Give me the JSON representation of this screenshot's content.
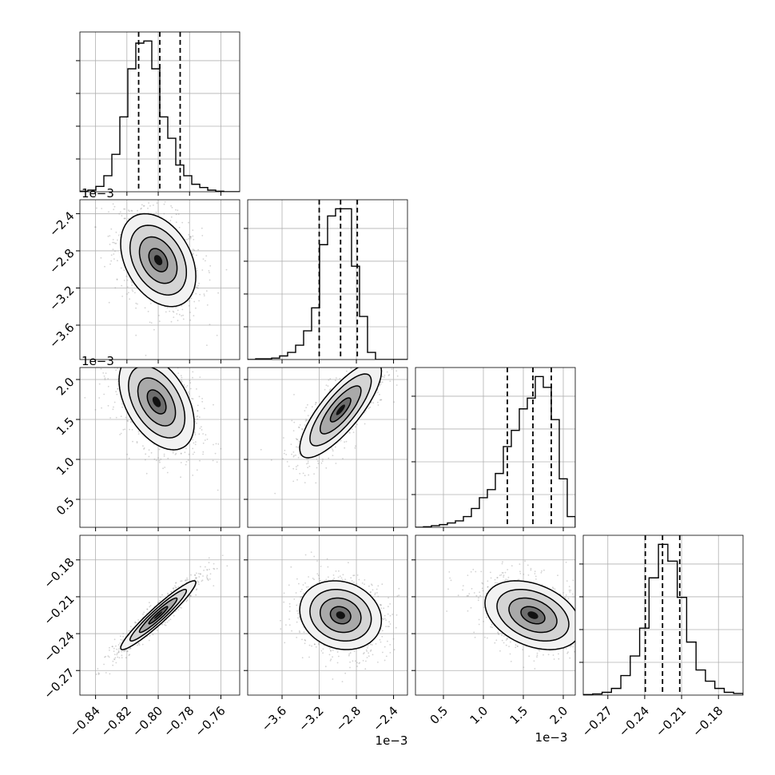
{
  "chart_data": {
    "type": "corner",
    "grid": true,
    "params": [
      {
        "range": [
          -0.85,
          -0.748
        ],
        "ticks": [
          -0.84,
          -0.82,
          -0.8,
          -0.78,
          -0.76
        ],
        "tick_labels": [
          "−0.84",
          "−0.82",
          "−0.80",
          "−0.78",
          "−0.76"
        ],
        "quantiles": [
          -0.8125,
          -0.799,
          -0.786
        ],
        "offset": ""
      },
      {
        "range": [
          -3.97,
          -2.25
        ],
        "ticks": [
          -3.6,
          -3.2,
          -2.8,
          -2.4
        ],
        "tick_labels": [
          "−3.6",
          "−3.2",
          "−2.8",
          "−2.4"
        ],
        "quantiles": [
          -3.2,
          -2.97,
          -2.79
        ],
        "offset": "1e−3"
      },
      {
        "range": [
          0.15,
          2.15
        ],
        "ticks": [
          0.5,
          1.0,
          1.5,
          2.0
        ],
        "tick_labels": [
          "0.5",
          "1.0",
          "1.5",
          "2.0"
        ],
        "quantiles": [
          1.3,
          1.62,
          1.85
        ],
        "offset": "1e−3"
      },
      {
        "range": [
          -0.29,
          -0.16
        ],
        "ticks": [
          -0.27,
          -0.24,
          -0.21,
          -0.18
        ],
        "tick_labels": [
          "−0.27",
          "−0.24",
          "−0.21",
          "−0.18"
        ],
        "quantiles": [
          -0.2395,
          -0.2255,
          -0.2115
        ],
        "offset": ""
      }
    ],
    "histograms": [
      {
        "param": 0,
        "bin_edges_range": [
          -0.85,
          -0.748
        ],
        "counts": [
          1,
          3,
          10,
          30,
          70,
          140,
          230,
          278,
          282,
          230,
          140,
          100,
          50,
          30,
          14,
          8,
          3,
          1,
          0,
          0
        ]
      },
      {
        "param": 1,
        "bin_edges_range": [
          -3.97,
          -2.25
        ],
        "counts": [
          0,
          1,
          1,
          2,
          5,
          10,
          20,
          40,
          72,
          160,
          200,
          210,
          210,
          130,
          60,
          10,
          0,
          0,
          0,
          0
        ]
      },
      {
        "param": 2,
        "bin_edges_range": [
          0.15,
          2.15
        ],
        "counts": [
          0,
          1,
          3,
          5,
          8,
          12,
          20,
          35,
          55,
          70,
          100,
          150,
          180,
          220,
          240,
          280,
          260,
          200,
          90,
          20
        ]
      },
      {
        "param": 3,
        "bin_edges_range": [
          -0.29,
          -0.16
        ],
        "counts": [
          1,
          2,
          5,
          12,
          35,
          70,
          120,
          210,
          270,
          240,
          175,
          95,
          45,
          25,
          12,
          5,
          3
        ]
      }
    ],
    "pairs": [
      {
        "x": 0,
        "y": 1,
        "center": [
          -0.8,
          -2.9
        ],
        "sigma": [
          0.012,
          0.25
        ],
        "rho": -0.35
      },
      {
        "x": 0,
        "y": 2,
        "center": [
          -0.801,
          1.72
        ],
        "sigma": [
          0.012,
          0.3
        ],
        "rho": -0.45
      },
      {
        "x": 1,
        "y": 2,
        "center": [
          -2.97,
          1.62
        ],
        "sigma": [
          0.22,
          0.3
        ],
        "rho": 0.8
      },
      {
        "x": 0,
        "y": 3,
        "center": [
          -0.8,
          -0.225
        ],
        "sigma": [
          0.012,
          0.014
        ],
        "rho": 0.95
      },
      {
        "x": 1,
        "y": 3,
        "center": [
          -2.97,
          -0.225
        ],
        "sigma": [
          0.22,
          0.014
        ],
        "rho": -0.15
      },
      {
        "x": 2,
        "y": 3,
        "center": [
          1.62,
          -0.225
        ],
        "sigma": [
          0.3,
          0.014
        ],
        "rho": -0.35
      }
    ],
    "contour_levels_sigma": [
      0.5,
      1.0,
      1.5,
      2.0
    ],
    "colors": {
      "line": "#000000",
      "grid": "#b0b0b0",
      "points": "#808080"
    }
  }
}
